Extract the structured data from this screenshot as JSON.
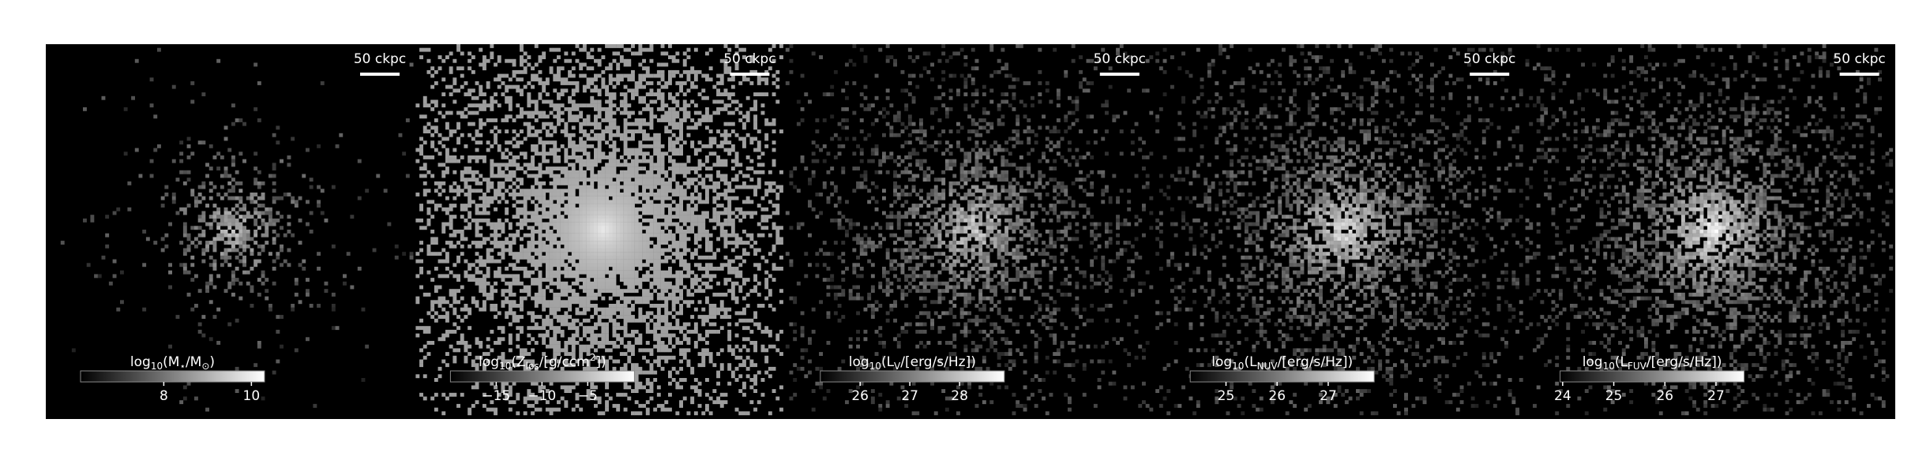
{
  "chart_data": [
    {
      "type": "image",
      "scale_bar": "50 ckpc",
      "colorbar_label": [
        {
          "text": "log"
        },
        {
          "sub": "10"
        },
        {
          "text": "(M"
        },
        {
          "sub": "⋆"
        },
        {
          "text": "/M"
        },
        {
          "sub": "⊙"
        },
        {
          "text": ")"
        }
      ],
      "clim": [
        6.1,
        10.3
      ],
      "cticks": [
        8,
        10
      ],
      "colormap": "gray"
    },
    {
      "type": "image",
      "scale_bar": "50 ckpc",
      "colorbar_label": [
        {
          "text": "log"
        },
        {
          "sub": "10"
        },
        {
          "text": "(Z"
        },
        {
          "sub": "los"
        },
        {
          "text": "/[g/ccm"
        },
        {
          "sup": "2"
        },
        {
          "text": "])"
        }
      ],
      "clim": [
        -20,
        0.1
      ],
      "cticks": [
        {
          "value": -15,
          "label": "−15"
        },
        {
          "value": -10,
          "label": "−10"
        },
        {
          "value": -5,
          "label": "−5"
        }
      ],
      "colormap": "gray"
    },
    {
      "type": "image",
      "scale_bar": "50 ckpc",
      "colorbar_label": [
        {
          "text": "log"
        },
        {
          "sub": "10"
        },
        {
          "text": "(L"
        },
        {
          "sub": "V"
        },
        {
          "text": "/[erg/s/Hz])"
        }
      ],
      "clim": [
        25.2,
        28.9
      ],
      "cticks": [
        26,
        27,
        28
      ],
      "colormap": "gray"
    },
    {
      "type": "image",
      "scale_bar": "50 ckpc",
      "colorbar_label": [
        {
          "text": "log"
        },
        {
          "sub": "10"
        },
        {
          "text": "(L"
        },
        {
          "sub": "NUV"
        },
        {
          "text": "/[erg/s/Hz])"
        }
      ],
      "clim": [
        24.3,
        27.9
      ],
      "cticks": [
        25,
        26,
        27
      ],
      "colormap": "gray"
    },
    {
      "type": "image",
      "scale_bar": "50 ckpc",
      "colorbar_label": [
        {
          "text": "log"
        },
        {
          "sub": "10"
        },
        {
          "text": "(L"
        },
        {
          "sub": "FUV"
        },
        {
          "text": "/[erg/s/Hz])"
        }
      ],
      "clim": [
        23.95,
        27.55
      ],
      "cticks": [
        24,
        25,
        26,
        27
      ],
      "colormap": "gray"
    }
  ]
}
